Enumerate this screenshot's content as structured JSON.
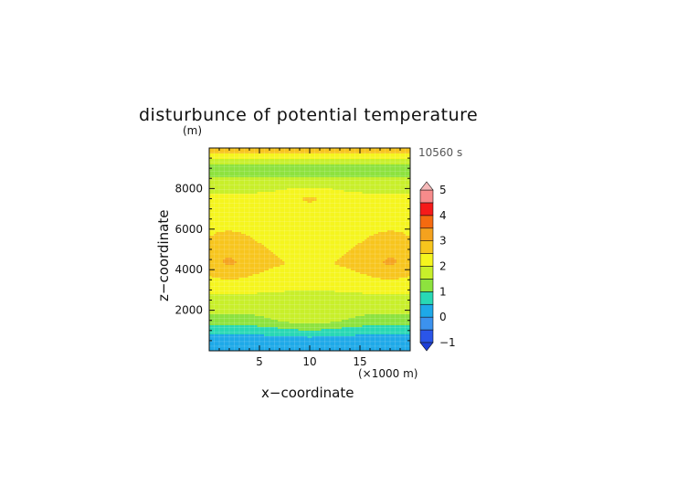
{
  "chart_data": {
    "type": "heatmap",
    "title": "disturbunce of potential temperature",
    "xlabel": "x−coordinate",
    "ylabel": "z−coordinate",
    "y_unit": "(m)",
    "x_unit": "(×1000 m)",
    "time_label": "10560 s",
    "xlim": [
      0,
      20
    ],
    "ylim": [
      0,
      10000
    ],
    "x_ticks": [
      "5",
      "10",
      "15"
    ],
    "x_tick_values": [
      5,
      10,
      15
    ],
    "y_ticks": [
      "2000",
      "4000",
      "6000",
      "8000"
    ],
    "y_tick_values": [
      2000,
      4000,
      6000,
      8000
    ],
    "colorbar": {
      "labels": [
        "−1",
        "0",
        "1",
        "2",
        "3",
        "4",
        "5"
      ],
      "label_values": [
        -1,
        0,
        1,
        2,
        3,
        4,
        5
      ],
      "bands": [
        {
          "lo": -1.0,
          "hi": -0.5,
          "color": "#2a55e8"
        },
        {
          "lo": -0.5,
          "hi": 0.0,
          "color": "#3c92ee"
        },
        {
          "lo": 0.0,
          "hi": 0.5,
          "color": "#1ea9e8"
        },
        {
          "lo": 0.5,
          "hi": 1.0,
          "color": "#28d8b4"
        },
        {
          "lo": 1.0,
          "hi": 1.5,
          "color": "#8de23e"
        },
        {
          "lo": 1.5,
          "hi": 2.0,
          "color": "#c8ef2a"
        },
        {
          "lo": 2.0,
          "hi": 2.5,
          "color": "#f5f51e"
        },
        {
          "lo": 2.5,
          "hi": 3.0,
          "color": "#f7c51d"
        },
        {
          "lo": 3.0,
          "hi": 3.5,
          "color": "#f4a21e"
        },
        {
          "lo": 3.5,
          "hi": 4.0,
          "color": "#f56a0f"
        },
        {
          "lo": 4.0,
          "hi": 4.5,
          "color": "#f51a1a"
        },
        {
          "lo": 4.5,
          "hi": 5.0,
          "color": "#f78b8b"
        }
      ],
      "under_color": "#1e3fd6",
      "over_color": "#f5b9b9"
    },
    "field_levels": [
      {
        "z": 0,
        "value": 0.1
      },
      {
        "z": 300,
        "value": 0.2
      },
      {
        "z": 700,
        "value": 0.4
      },
      {
        "z": 1100,
        "value": 0.8
      },
      {
        "z": 1500,
        "value": 1.3
      },
      {
        "z": 2200,
        "value": 1.7
      },
      {
        "z": 3200,
        "value": 2.1
      },
      {
        "z": 4300,
        "value": 2.5
      },
      {
        "z": 5500,
        "value": 2.3
      },
      {
        "z": 6600,
        "value": 2.3
      },
      {
        "z": 7600,
        "value": 2.1
      },
      {
        "z": 8300,
        "value": 1.7
      },
      {
        "z": 8900,
        "value": 1.2
      },
      {
        "z": 9300,
        "value": 1.6
      },
      {
        "z": 9800,
        "value": 2.6
      }
    ],
    "grid": true
  }
}
